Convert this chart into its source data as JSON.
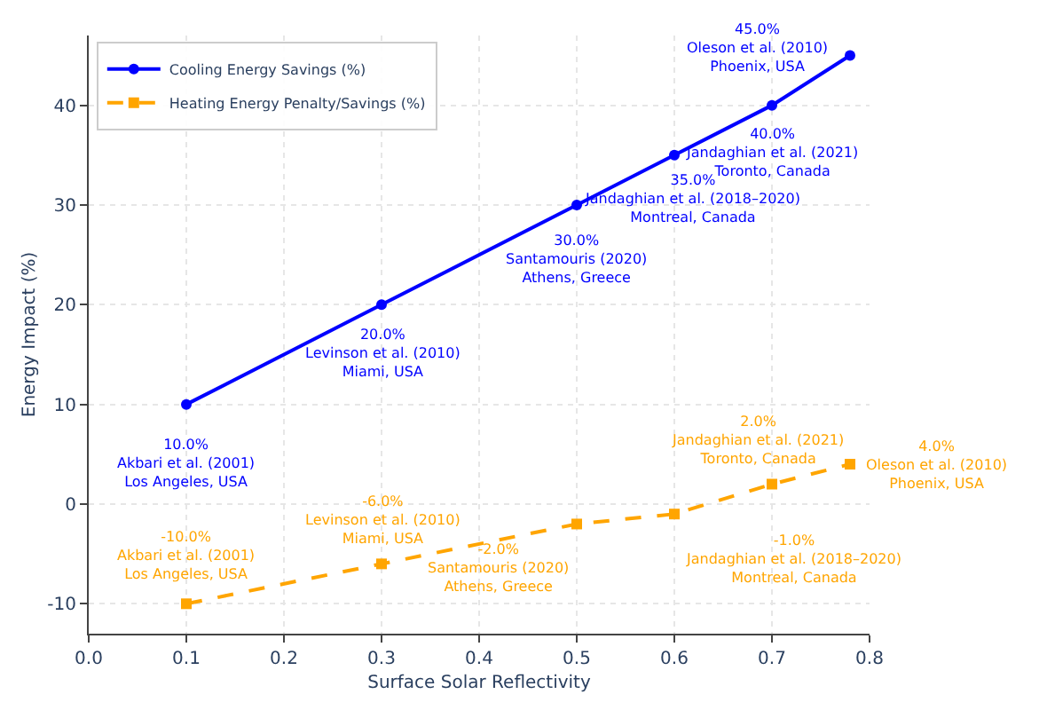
{
  "chart_data": {
    "type": "line",
    "xlabel": "Surface Solar Reflectivity",
    "ylabel": "Energy Impact (%)",
    "x": [
      0.1,
      0.3,
      0.5,
      0.6,
      0.7,
      0.78
    ],
    "series": [
      {
        "name": "Cooling Energy Savings (%)",
        "color": "#0000ff",
        "values": [
          10,
          20,
          30,
          35,
          40,
          45
        ],
        "marker": "circle",
        "line_style": "solid"
      },
      {
        "name": "Heating Energy Penalty/Savings (%)",
        "color": "#ffa500",
        "values": [
          -10,
          -6,
          -2,
          -1,
          2,
          4
        ],
        "marker": "square",
        "line_style": "dashed"
      }
    ],
    "xlim": [
      0,
      0.8
    ],
    "xticks": [
      {
        "value": 0,
        "label": "0.0"
      },
      0.1,
      0.2,
      0.3,
      0.4,
      0.5,
      0.6,
      0.7,
      0.8
    ],
    "ylim": [
      -13,
      47
    ],
    "yticks": [
      -10,
      0,
      10,
      20,
      30,
      40
    ],
    "grid": true,
    "legend": "top left",
    "annotations": [
      {
        "text": "10.0%\nAkbari et al. (2001)\nLos Angeles, USA",
        "x": 0.1,
        "y": 10
      },
      {
        "text": "20.0%\nLevinson et al. (2010)\nMiami, USA",
        "x": 0.3,
        "y": 20
      },
      {
        "text": "30.0%\nSantamouris (2020)\nAthens, Greece",
        "x": 0.5,
        "y": 30
      },
      {
        "text": "35.0%\nJandaghian et al. (2018–2020)\nMontreal, Canada",
        "x": 0.6,
        "y": 35
      },
      {
        "text": "40.0%\nJandaghian et al. (2021)\nToronto, Canada",
        "x": 0.7,
        "y": 40
      },
      {
        "text": "45.0%\nOleson et al. (2010)\nPhoenix, USA",
        "x": 0.78,
        "y": 45
      },
      {
        "text": "-10.0%\nAkbari et al. (2001)\nLos Angeles, USA",
        "x": 0.1,
        "y": -10
      },
      {
        "text": "-6.0%\nLevinson et al. (2010)\nMiami, USA",
        "x": 0.3,
        "y": -6
      },
      {
        "text": "-2.0%\nSantamouris (2020)\nAthens, Greece",
        "x": 0.5,
        "y": -2
      },
      {
        "text": "-1.0%\nJandaghian et al. (2018–2020)\nMontreal, Canada",
        "x": 0.6,
        "y": -1
      },
      {
        "text": "2.0%\nJandaghian et al. (2021)\nToronto, Canada",
        "x": 0.7,
        "y": 2
      },
      {
        "text": "4.0%\nOleson et al. (2010)\nPhoenix, USA",
        "x": 0.78,
        "y": 4
      }
    ]
  }
}
